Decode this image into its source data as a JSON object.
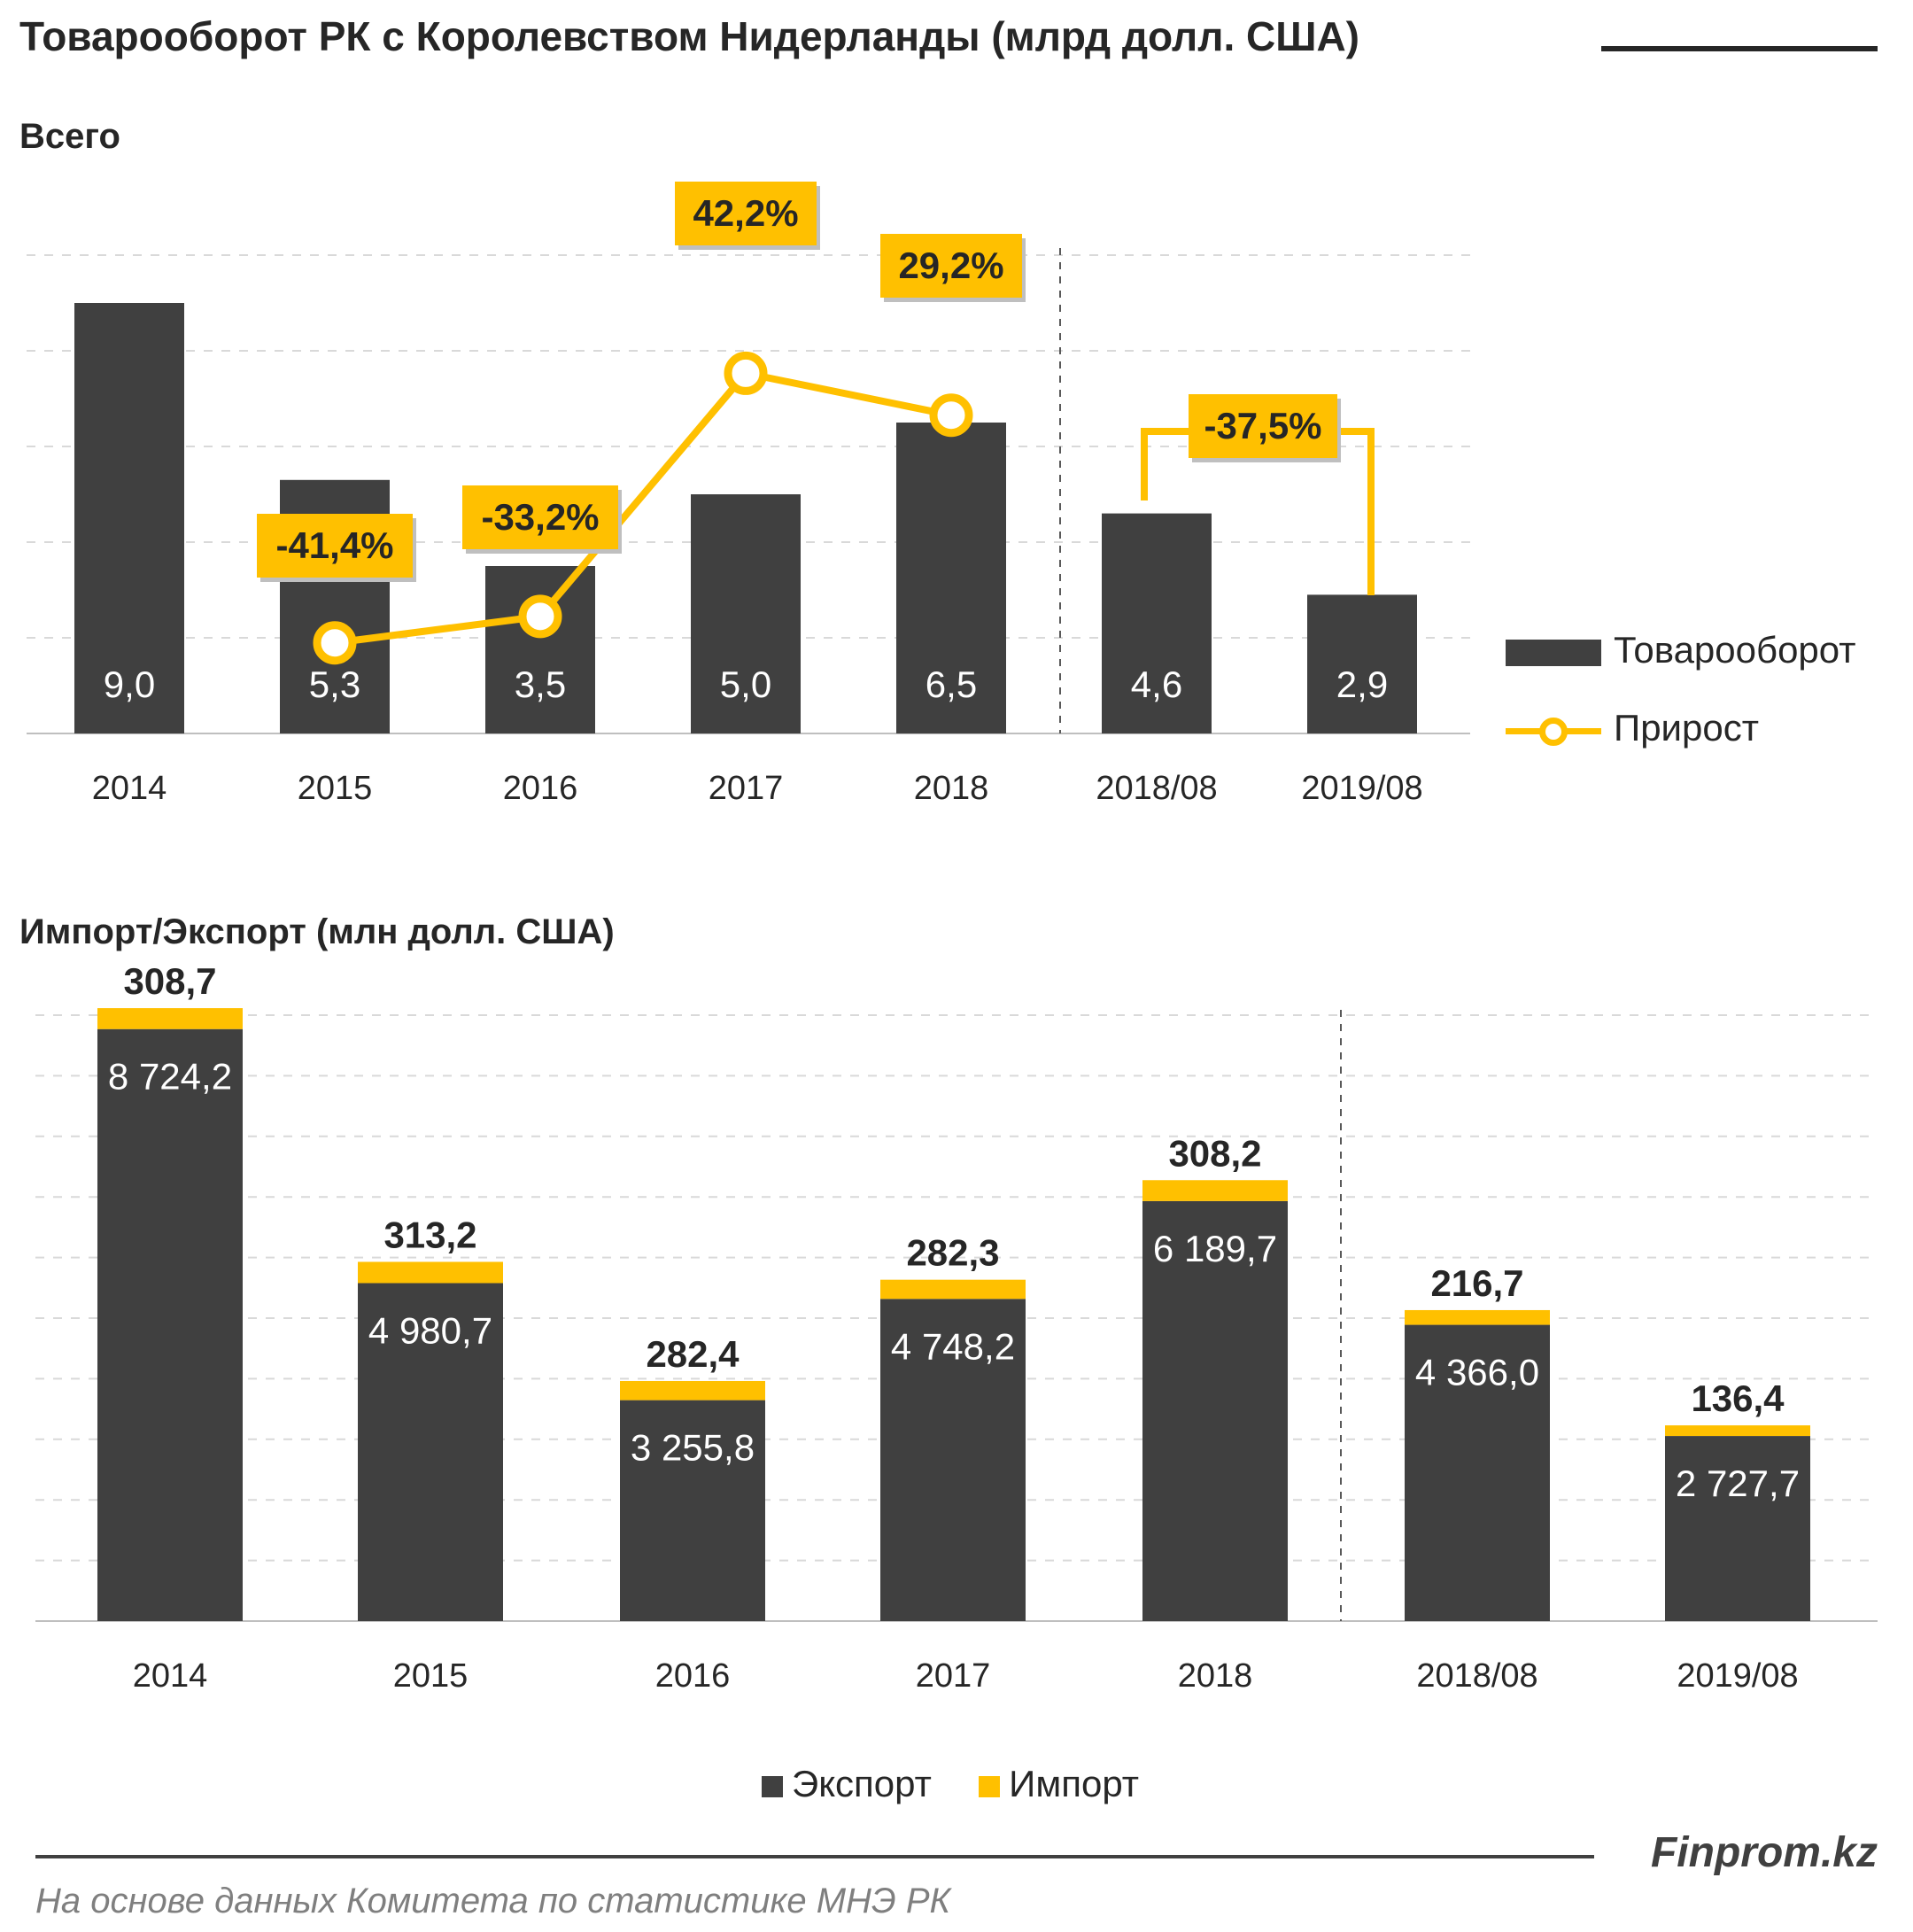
{
  "title": "Товарооборот РК с Королевством Нидерланды (млрд долл. США)",
  "brand": "Finprom.kz",
  "source": "На основе данных Комитета по статистике МНЭ РК",
  "colors": {
    "dark": "#404040",
    "accent": "#FFC000",
    "grid": "#D9D9D9"
  },
  "chart_data": [
    {
      "type": "bar",
      "subtitle": "Всего",
      "categories": [
        "2014",
        "2015",
        "2016",
        "2017",
        "2018",
        "2018/08",
        "2019/08"
      ],
      "series": [
        {
          "name": "Товарооборот",
          "values": [
            9.0,
            5.3,
            3.5,
            5.0,
            6.5,
            4.6,
            2.9
          ],
          "labels": [
            "9,0",
            "5,3",
            "3,5",
            "5,0",
            "6,5",
            "4,6",
            "2,9"
          ]
        },
        {
          "name": "Прирост",
          "type": "line",
          "values": [
            null,
            -41.4,
            -33.2,
            42.2,
            29.2,
            null,
            null
          ],
          "labels": [
            "",
            "-41,4%",
            "-33,2%",
            "42,2%",
            "29,2%",
            "",
            ""
          ]
        }
      ],
      "period_growth": {
        "from": "2018/08",
        "to": "2019/08",
        "value": -37.5,
        "label": "-37,5%"
      },
      "ylim": [
        0,
        10
      ],
      "grid": true,
      "legend_position": "right"
    },
    {
      "type": "bar",
      "stacked": true,
      "subtitle": "Импорт/Экспорт  (млн долл. США)",
      "categories": [
        "2014",
        "2015",
        "2016",
        "2017",
        "2018",
        "2018/08",
        "2019/08"
      ],
      "series": [
        {
          "name": "Экспорт",
          "values": [
            8724.2,
            4980.7,
            3255.8,
            4748.2,
            6189.7,
            4366.0,
            2727.7
          ],
          "labels": [
            "8 724,2",
            "4 980,7",
            "3 255,8",
            "4 748,2",
            "6 189,7",
            "4 366,0",
            "2 727,7"
          ]
        },
        {
          "name": "Импорт",
          "values": [
            308.7,
            313.2,
            282.4,
            282.3,
            308.2,
            216.7,
            136.4
          ],
          "labels": [
            "308,7",
            "313,2",
            "282,4",
            "282,3",
            "308,2",
            "216,7",
            "136,4"
          ]
        }
      ],
      "ylim": [
        0,
        10000
      ],
      "grid": true,
      "legend_position": "bottom"
    }
  ]
}
